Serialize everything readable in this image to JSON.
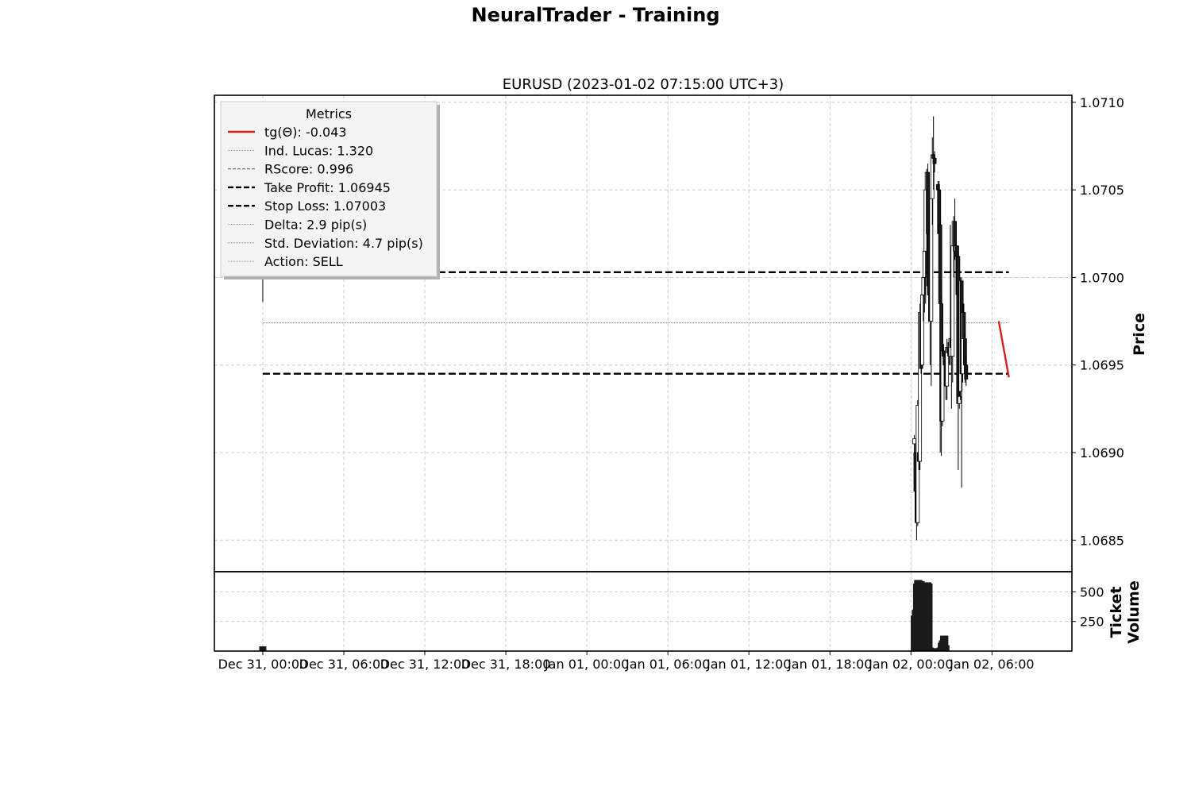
{
  "figure_title": "NeuralTrader - Training",
  "chart_data": {
    "type": "candlestick",
    "title": "EURUSD (2023-01-02 07:15:00 UTC+3)",
    "ylabel": "Price",
    "volume_ylabel": [
      "Ticket",
      "Volume"
    ],
    "x_ticks": [
      "Dec 31, 00:00",
      "Dec 31, 06:00",
      "Dec 31, 12:00",
      "Dec 31, 18:00",
      "Jan 01, 00:00",
      "Jan 01, 06:00",
      "Jan 01, 12:00",
      "Jan 01, 18:00",
      "Jan 02, 00:00",
      "Jan 02, 06:00"
    ],
    "xlim": [
      "Dec 30, 20:25",
      "Jan 02, 11:55"
    ],
    "y_ticks": [
      1.0685,
      1.069,
      1.0695,
      1.07,
      1.0705,
      1.071
    ],
    "y_tick_labels": [
      "1.0685",
      "1.0690",
      "1.0695",
      "1.0700",
      "1.0705",
      "1.0710"
    ],
    "ylim": [
      1.06832,
      1.07104
    ],
    "volume_ticks": [
      250,
      500
    ],
    "volume_ylim": [
      0,
      670
    ],
    "grid": true,
    "legend": {
      "title": "Metrics",
      "placement": "top-left",
      "entries": [
        {
          "label": "tg(Θ): -0.043",
          "style": "solid-red"
        },
        {
          "label": "Ind. Lucas: 1.320",
          "style": "dotted-thin"
        },
        {
          "label": "RScore: 0.996",
          "style": "dashed-gray"
        },
        {
          "label": "Take Profit: 1.06945",
          "style": "dashed-bold"
        },
        {
          "label": "Stop Loss: 1.07003",
          "style": "dashed-bold"
        },
        {
          "label": "Delta: 2.9 pip(s)",
          "style": "dotted-thin"
        },
        {
          "label": "Std. Deviation: 4.7 pip(s)",
          "style": "dotted-thin"
        },
        {
          "label": "Action: SELL",
          "style": "dotted-thin"
        }
      ]
    },
    "levels": {
      "take_profit": 1.06945,
      "stop_loss": 1.07003,
      "reference": 1.06974,
      "start": "Dec 31, 00:00",
      "end": "Jan 02, 07:15"
    },
    "trend_line": {
      "x": [
        "Jan 02, 06:30",
        "Jan 02, 07:15"
      ],
      "y": [
        1.06975,
        1.06943
      ]
    },
    "candles": [
      {
        "t": "Dec 31, 00:00",
        "o": 1.07,
        "h": 1.07003,
        "l": 1.06986,
        "c": 1.07003
      },
      {
        "t": "Jan 02, 00:15",
        "o": 1.06905,
        "h": 1.0691,
        "l": 1.069,
        "c": 1.06908
      },
      {
        "t": "Jan 02, 00:20",
        "o": 1.069,
        "h": 1.06905,
        "l": 1.06875,
        "c": 1.06878
      },
      {
        "t": "Jan 02, 00:25",
        "o": 1.06878,
        "h": 1.0689,
        "l": 1.0685,
        "c": 1.0686
      },
      {
        "t": "Jan 02, 00:30",
        "o": 1.0686,
        "h": 1.0693,
        "l": 1.06858,
        "c": 1.06927
      },
      {
        "t": "Jan 02, 00:35",
        "o": 1.069,
        "h": 1.0692,
        "l": 1.0689,
        "c": 1.06895
      },
      {
        "t": "Jan 02, 00:40",
        "o": 1.06895,
        "h": 1.06985,
        "l": 1.0689,
        "c": 1.0698
      },
      {
        "t": "Jan 02, 00:45",
        "o": 1.0698,
        "h": 1.06985,
        "l": 1.06945,
        "c": 1.06948
      },
      {
        "t": "Jan 02, 00:50",
        "o": 1.0695,
        "h": 1.06995,
        "l": 1.06948,
        "c": 1.0699
      },
      {
        "t": "Jan 02, 00:55",
        "o": 1.0699,
        "h": 1.07005,
        "l": 1.06975,
        "c": 1.07
      },
      {
        "t": "Jan 02, 01:00",
        "o": 1.07,
        "h": 1.0702,
        "l": 1.0698,
        "c": 1.07015
      },
      {
        "t": "Jan 02, 01:05",
        "o": 1.07015,
        "h": 1.07055,
        "l": 1.06985,
        "c": 1.0705
      },
      {
        "t": "Jan 02, 01:10",
        "o": 1.0705,
        "h": 1.07062,
        "l": 1.06995,
        "c": 1.0706
      },
      {
        "t": "Jan 02, 01:15",
        "o": 1.0706,
        "h": 1.07065,
        "l": 1.0702,
        "c": 1.07025
      },
      {
        "t": "Jan 02, 01:20",
        "o": 1.07025,
        "h": 1.0703,
        "l": 1.06985,
        "c": 1.0699
      },
      {
        "t": "Jan 02, 01:25",
        "o": 1.0699,
        "h": 1.0701,
        "l": 1.0695,
        "c": 1.06975
      },
      {
        "t": "Jan 02, 01:30",
        "o": 1.06975,
        "h": 1.0705,
        "l": 1.06938,
        "c": 1.07045
      },
      {
        "t": "Jan 02, 01:35",
        "o": 1.07045,
        "h": 1.0708,
        "l": 1.0703,
        "c": 1.0707
      },
      {
        "t": "Jan 02, 01:40",
        "o": 1.0707,
        "h": 1.07092,
        "l": 1.0705,
        "c": 1.07068
      },
      {
        "t": "Jan 02, 01:45",
        "o": 1.07068,
        "h": 1.07072,
        "l": 1.0706,
        "c": 1.07065
      },
      {
        "t": "Jan 02, 02:00",
        "o": 1.07053,
        "h": 1.07055,
        "l": 1.07045,
        "c": 1.0705
      },
      {
        "t": "Jan 02, 02:05",
        "o": 1.0705,
        "h": 1.07055,
        "l": 1.0702,
        "c": 1.07025
      },
      {
        "t": "Jan 02, 02:10",
        "o": 1.0703,
        "h": 1.07032,
        "l": 1.069,
        "c": 1.06985
      },
      {
        "t": "Jan 02, 02:15",
        "o": 1.06985,
        "h": 1.0699,
        "l": 1.06898,
        "c": 1.06918
      },
      {
        "t": "Jan 02, 02:20",
        "o": 1.06918,
        "h": 1.0696,
        "l": 1.06915,
        "c": 1.06958
      },
      {
        "t": "Jan 02, 02:25",
        "o": 1.06958,
        "h": 1.06962,
        "l": 1.0695,
        "c": 1.06955
      },
      {
        "t": "Jan 02, 02:30",
        "o": 1.06955,
        "h": 1.06958,
        "l": 1.06945,
        "c": 1.0695
      },
      {
        "t": "Jan 02, 02:35",
        "o": 1.06952,
        "h": 1.06958,
        "l": 1.0693,
        "c": 1.06938
      },
      {
        "t": "Jan 02, 02:40",
        "o": 1.06938,
        "h": 1.06965,
        "l": 1.0693,
        "c": 1.0696
      },
      {
        "t": "Jan 02, 02:45",
        "o": 1.0696,
        "h": 1.06963,
        "l": 1.06955,
        "c": 1.06957
      },
      {
        "t": "Jan 02, 02:50",
        "o": 1.06957,
        "h": 1.06962,
        "l": 1.0695,
        "c": 1.06955
      },
      {
        "t": "Jan 02, 02:55",
        "o": 1.06955,
        "h": 1.0703,
        "l": 1.0695,
        "c": 1.06965
      },
      {
        "t": "Jan 02, 03:00",
        "o": 1.06965,
        "h": 1.0697,
        "l": 1.06925,
        "c": 1.0696
      },
      {
        "t": "Jan 02, 03:05",
        "o": 1.06955,
        "h": 1.0702,
        "l": 1.0694,
        "c": 1.07018
      },
      {
        "t": "Jan 02, 03:10",
        "o": 1.07018,
        "h": 1.07035,
        "l": 1.07,
        "c": 1.07032
      },
      {
        "t": "Jan 02, 03:15",
        "o": 1.07032,
        "h": 1.07045,
        "l": 1.0701,
        "c": 1.07015
      },
      {
        "t": "Jan 02, 03:20",
        "o": 1.07015,
        "h": 1.0702,
        "l": 1.0699,
        "c": 1.07018
      },
      {
        "t": "Jan 02, 03:25",
        "o": 1.07018,
        "h": 1.07018,
        "l": 1.0699,
        "c": 1.07012
      },
      {
        "t": "Jan 02, 03:30",
        "o": 1.07012,
        "h": 1.07015,
        "l": 1.0689,
        "c": 1.06928
      },
      {
        "t": "Jan 02, 03:35",
        "o": 1.06928,
        "h": 1.0694,
        "l": 1.06925,
        "c": 1.06932
      },
      {
        "t": "Jan 02, 03:40",
        "o": 1.06935,
        "h": 1.07,
        "l": 1.0693,
        "c": 1.06998
      },
      {
        "t": "Jan 02, 03:45",
        "o": 1.06998,
        "h": 1.07,
        "l": 1.0688,
        "c": 1.06945
      },
      {
        "t": "Jan 02, 03:50",
        "o": 1.06945,
        "h": 1.06985,
        "l": 1.0694,
        "c": 1.0698
      },
      {
        "t": "Jan 02, 03:55",
        "o": 1.0698,
        "h": 1.06985,
        "l": 1.0696,
        "c": 1.06965
      },
      {
        "t": "Jan 02, 04:00",
        "o": 1.06965,
        "h": 1.06968,
        "l": 1.0694,
        "c": 1.0695
      },
      {
        "t": "Jan 02, 04:05",
        "o": 1.0695,
        "h": 1.06955,
        "l": 1.06938,
        "c": 1.06942
      }
    ],
    "volumes": [
      {
        "t": "Dec 31, 00:00",
        "v": 40
      },
      {
        "t": "Jan 02, 00:15",
        "v": 300
      },
      {
        "t": "Jan 02, 00:20",
        "v": 350
      },
      {
        "t": "Jan 02, 00:25",
        "v": 570
      },
      {
        "t": "Jan 02, 00:30",
        "v": 600
      },
      {
        "t": "Jan 02, 00:35",
        "v": 600
      },
      {
        "t": "Jan 02, 00:40",
        "v": 590
      },
      {
        "t": "Jan 02, 00:45",
        "v": 590
      },
      {
        "t": "Jan 02, 00:50",
        "v": 310
      },
      {
        "t": "Jan 02, 00:55",
        "v": 30
      },
      {
        "t": "Jan 02, 01:00",
        "v": 30
      },
      {
        "t": "Jan 02, 01:05",
        "v": 30
      },
      {
        "t": "Jan 02, 01:10",
        "v": 40
      },
      {
        "t": "Jan 02, 01:15",
        "v": 580
      },
      {
        "t": "Jan 02, 01:20",
        "v": 570
      },
      {
        "t": "Jan 02, 01:25",
        "v": 30
      },
      {
        "t": "Jan 02, 01:35",
        "v": 10
      },
      {
        "t": "Jan 02, 01:40",
        "v": 20
      },
      {
        "t": "Jan 02, 01:45",
        "v": 25
      },
      {
        "t": "Jan 02, 02:00",
        "v": 10
      },
      {
        "t": "Jan 02, 02:05",
        "v": 20
      },
      {
        "t": "Jan 02, 02:10",
        "v": 30
      },
      {
        "t": "Jan 02, 02:15",
        "v": 70
      },
      {
        "t": "Jan 02, 02:20",
        "v": 90
      },
      {
        "t": "Jan 02, 02:25",
        "v": 130
      },
      {
        "t": "Jan 02, 02:30",
        "v": 130
      },
      {
        "t": "Jan 02, 02:35",
        "v": 50
      }
    ]
  }
}
